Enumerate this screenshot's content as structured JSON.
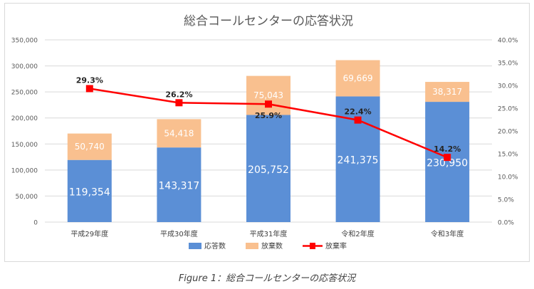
{
  "chart_data": {
    "type": "bar",
    "stacked": true,
    "title": "総合コールセンターの応答状況",
    "categories": [
      "平成29年度",
      "平成30年度",
      "平成31年度",
      "令和2年度",
      "令和3年度"
    ],
    "series": [
      {
        "name": "応答数",
        "type": "bar",
        "axis": "left",
        "color": "#5b8fd6",
        "values": [
          119354,
          143317,
          205752,
          241375,
          230950
        ],
        "labels": [
          "119,354",
          "143,317",
          "205,752",
          "241,375",
          "230,950"
        ]
      },
      {
        "name": "放棄数",
        "type": "bar",
        "axis": "left",
        "color": "#f9c08f",
        "values": [
          50740,
          54418,
          75043,
          69669,
          38317
        ],
        "labels": [
          "50,740",
          "54,418",
          "75,043",
          "69,669",
          "38,317"
        ]
      },
      {
        "name": "放棄率",
        "type": "line",
        "axis": "right",
        "color": "#ff0000",
        "values": [
          29.3,
          26.2,
          25.9,
          22.4,
          14.2
        ],
        "labels": [
          "29.3%",
          "26.2%",
          "25.9%",
          "22.4%",
          "14.2%"
        ]
      }
    ],
    "ylim": [
      0,
      350000
    ],
    "yticks": [
      "0",
      "50,000",
      "100,000",
      "150,000",
      "200,000",
      "250,000",
      "300,000",
      "350,000"
    ],
    "y2lim": [
      0,
      40
    ],
    "y2ticks": [
      "0.0%",
      "5.0%",
      "10.0%",
      "15.0%",
      "20.0%",
      "25.0%",
      "30.0%",
      "35.0%",
      "40.0%"
    ],
    "grid": true,
    "legend": "bottom"
  },
  "caption": "Figure 1：総合コールセンターの応答状況"
}
